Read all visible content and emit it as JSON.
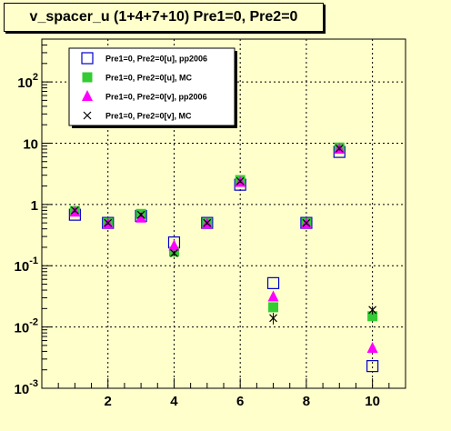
{
  "title": "v_spacer_u (1+4+7+10) Pre1=0, Pre2=0",
  "colors": {
    "background": "#ffffcc",
    "plot_bg": "#ffffcc",
    "blue": "#0000cc",
    "green": "#33cc33",
    "magenta": "#ff00ff",
    "black": "#000000"
  },
  "chart_data": {
    "type": "scatter",
    "title": "v_spacer_u (1+4+7+10) Pre1=0, Pre2=0",
    "xlabel": "",
    "ylabel": "",
    "xlim": [
      0,
      11
    ],
    "ylim": [
      0.001,
      500
    ],
    "log_y": true,
    "grid": true,
    "legend_position": "top-left",
    "x_ticks": [
      {
        "value": 2,
        "label": "2"
      },
      {
        "value": 4,
        "label": "4"
      },
      {
        "value": 6,
        "label": "6"
      },
      {
        "value": 8,
        "label": "8"
      },
      {
        "value": 10,
        "label": "10"
      }
    ],
    "y_ticks": [
      {
        "value": 0.001,
        "base": "10",
        "exp": "-3"
      },
      {
        "value": 0.01,
        "base": "10",
        "exp": "-2"
      },
      {
        "value": 0.1,
        "base": "10",
        "exp": "-1"
      },
      {
        "value": 1,
        "base": "1",
        "exp": ""
      },
      {
        "value": 10,
        "base": "10",
        "exp": ""
      },
      {
        "value": 100,
        "base": "10",
        "exp": "2"
      }
    ],
    "series": [
      {
        "name": "Pre1=0, Pre2=0[u], pp2006",
        "marker": "open-square",
        "color": "#0000cc",
        "x": [
          1,
          2,
          3,
          4,
          5,
          6,
          7,
          8,
          9,
          10
        ],
        "y": [
          0.68,
          0.5,
          0.65,
          0.24,
          0.5,
          2.1,
          0.052,
          0.5,
          7.2,
          0.0023
        ]
      },
      {
        "name": "Pre1=0, Pre2=0[u], MC",
        "marker": "filled-square",
        "color": "#33cc33",
        "x": [
          1,
          2,
          3,
          4,
          5,
          6,
          7,
          8,
          9,
          10
        ],
        "y": [
          0.78,
          0.5,
          0.7,
          0.17,
          0.5,
          2.5,
          0.021,
          0.5,
          8.5,
          0.015
        ]
      },
      {
        "name": "Pre1=0, Pre2=0[v], pp2006",
        "marker": "filled-triangle",
        "color": "#ff00ff",
        "x": [
          1,
          2,
          3,
          4,
          5,
          6,
          7,
          8,
          9,
          10
        ],
        "y": [
          0.75,
          0.48,
          0.6,
          0.21,
          0.48,
          2.3,
          0.031,
          0.48,
          8.0,
          0.0045
        ]
      },
      {
        "name": "Pre1=0, Pre2=0[v], MC",
        "marker": "cross",
        "color": "#000000",
        "x": [
          1,
          2,
          3,
          4,
          5,
          6,
          7,
          8,
          9,
          10
        ],
        "y": [
          0.8,
          0.5,
          0.68,
          0.16,
          0.5,
          2.4,
          0.014,
          0.5,
          8.2,
          0.019
        ],
        "err": [
          0.06,
          0.03,
          0.05,
          0.015,
          0.03,
          0.15,
          0.003,
          0.03,
          0.6,
          0.003
        ]
      }
    ]
  }
}
